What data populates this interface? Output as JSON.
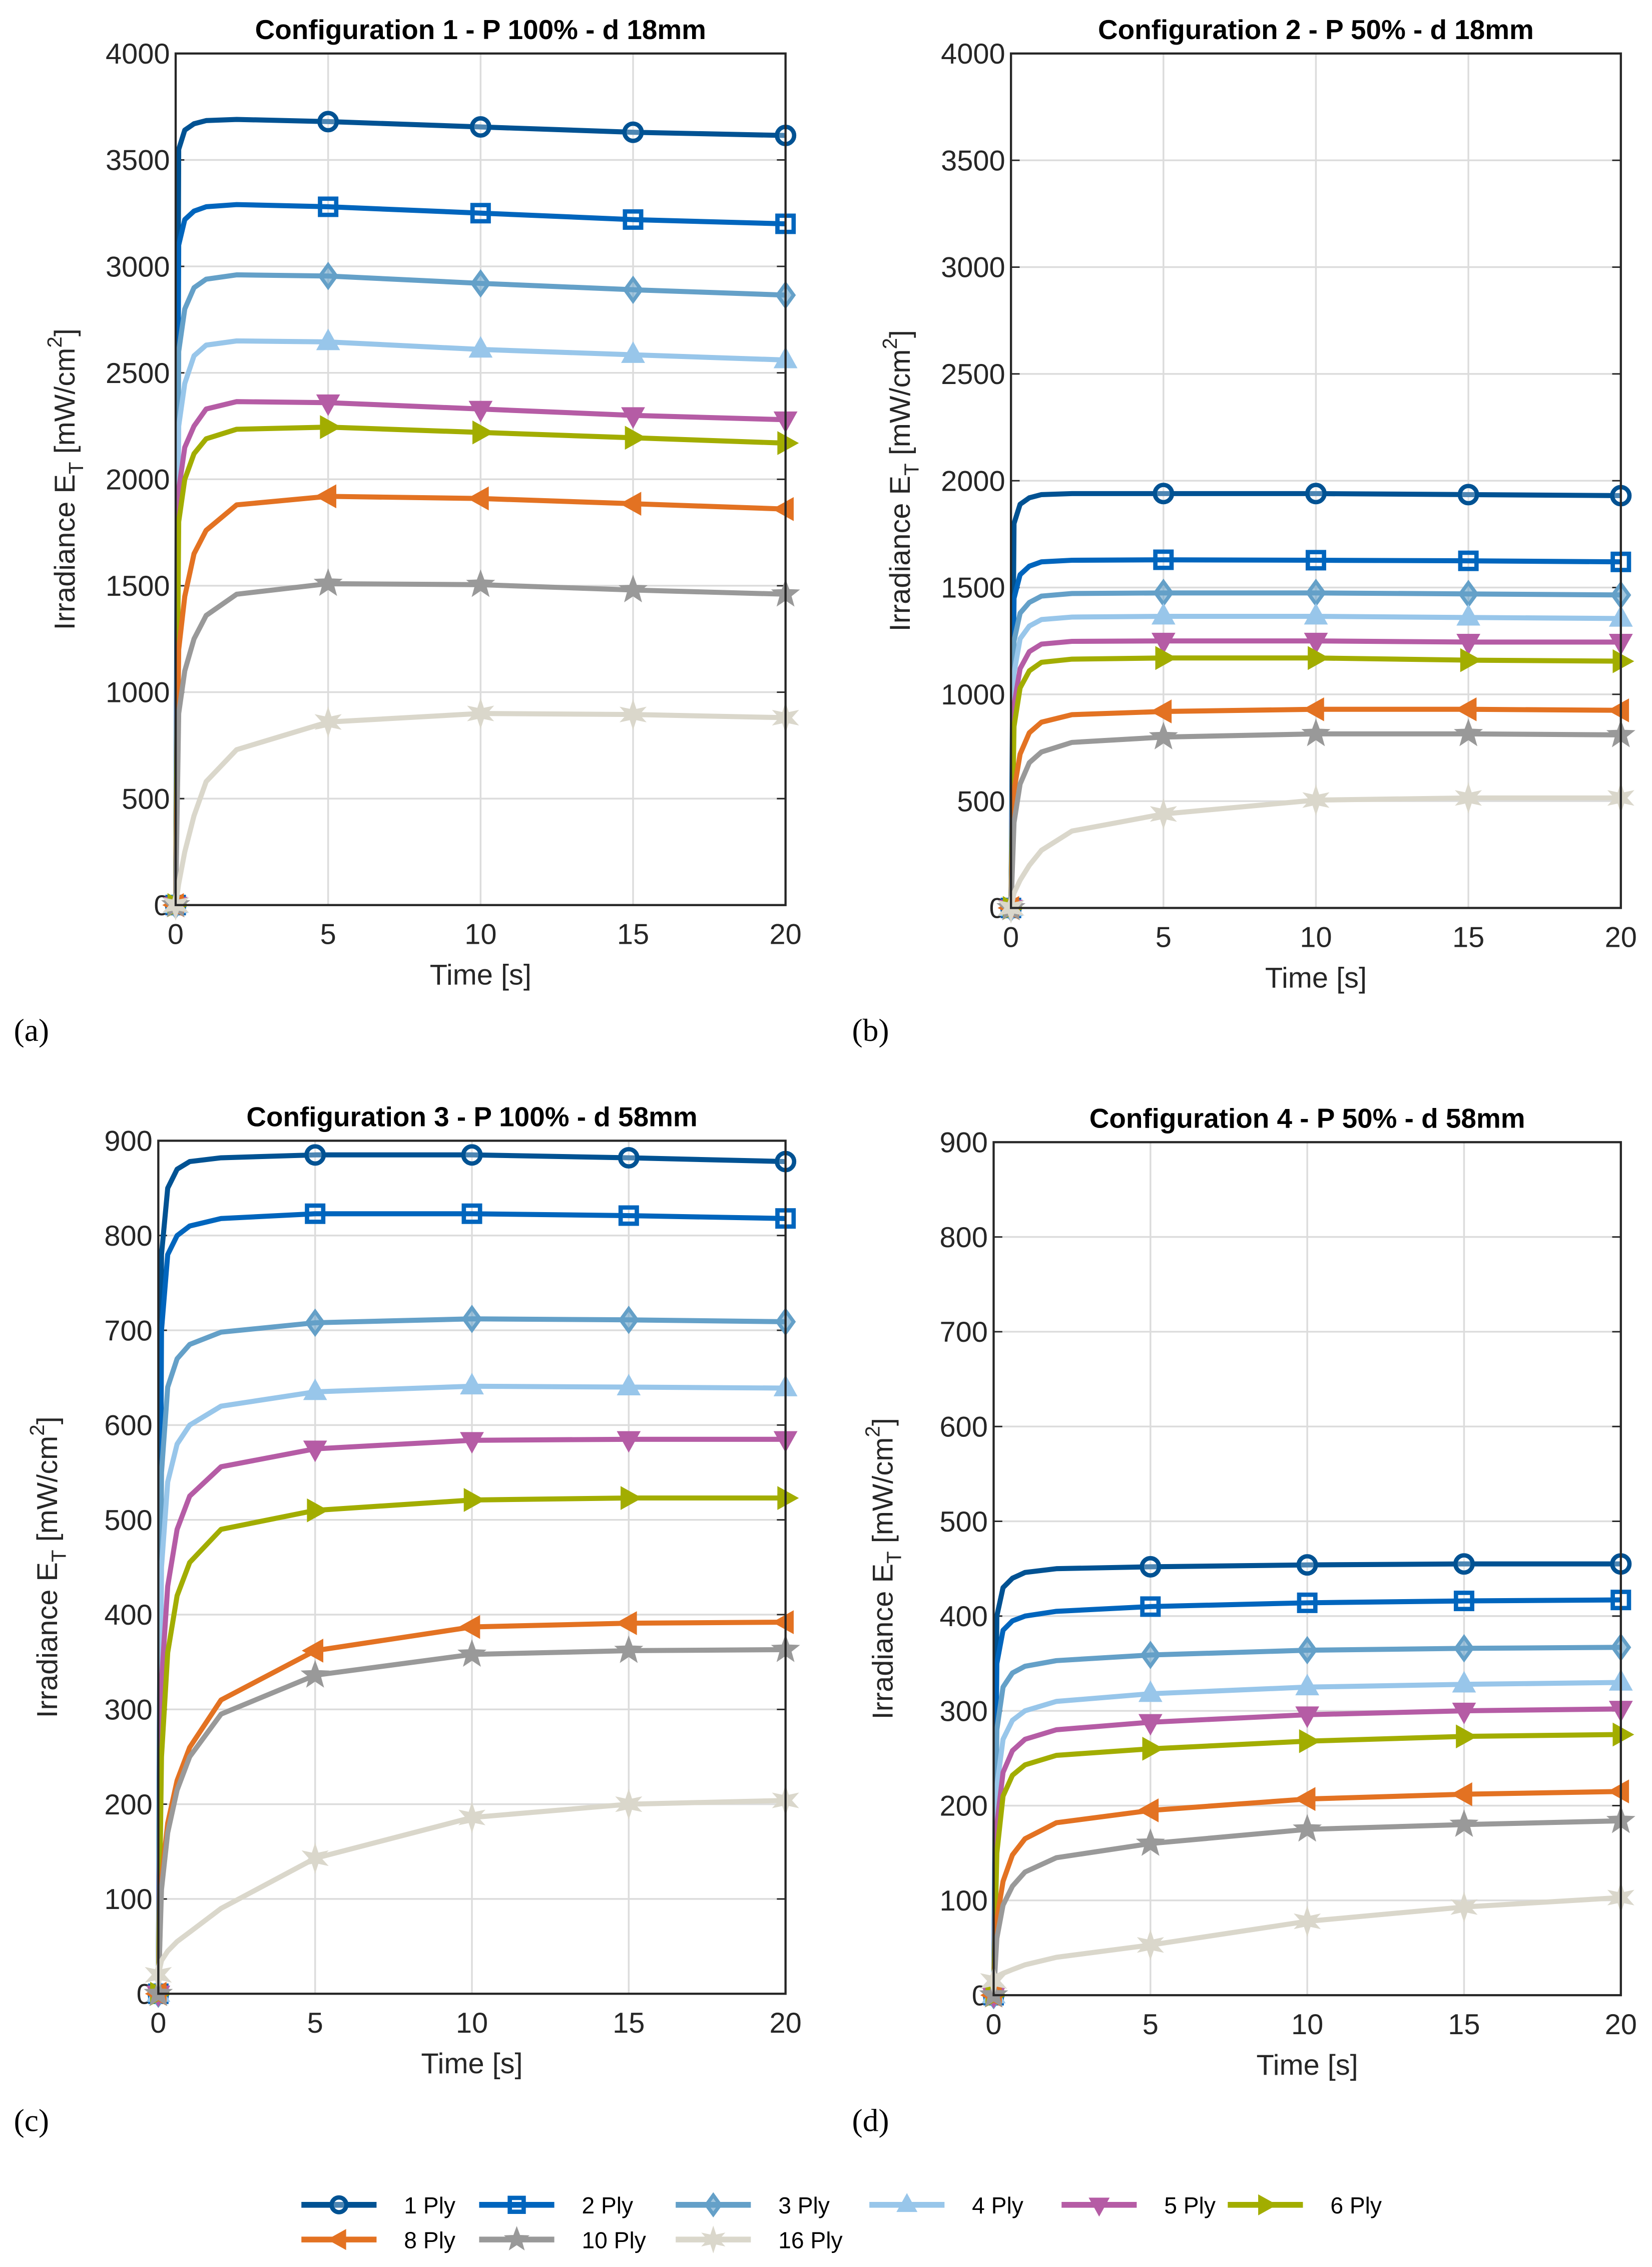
{
  "colors": {
    "1 Ply": "#005293",
    "2 Ply": "#0065bd",
    "3 Ply": "#64a0c8",
    "4 Ply": "#98c6ea",
    "5 Ply": "#b55ca5",
    "6 Ply": "#a2ad00",
    "8 Ply": "#e37222",
    "10 Ply": "#999999",
    "16 Ply": "#dad7cb"
  },
  "markers": {
    "1 Ply": "circle",
    "2 Ply": "square",
    "3 Ply": "diamond",
    "4 Ply": "triangle-up",
    "5 Ply": "triangle-down",
    "6 Ply": "triangle-right",
    "8 Ply": "triangle-left",
    "10 Ply": "pentagram",
    "16 Ply": "hexagram"
  },
  "legend": [
    "1 Ply",
    "2 Ply",
    "3 Ply",
    "4 Ply",
    "5 Ply",
    "6 Ply",
    "8 Ply",
    "10 Ply",
    "16 Ply"
  ],
  "chart_data": [
    {
      "type": "line",
      "panel": "(a)",
      "title": "Configuration 1 - P 100% - d 18mm",
      "xlabel": "Time [s]",
      "ylabel_parts": [
        "Irradiance E",
        "T",
        " [mW/cm",
        "2",
        "]"
      ],
      "xlim": [
        0,
        20
      ],
      "ylim": [
        0,
        4000
      ],
      "xticks": [
        0,
        5,
        10,
        15,
        20
      ],
      "yticks": [
        0,
        500,
        1000,
        1500,
        2000,
        2500,
        3000,
        3500,
        4000
      ],
      "grid": true,
      "x": [
        0,
        0.1,
        0.3,
        0.6,
        1,
        2,
        5,
        10,
        15,
        20
      ],
      "series": [
        {
          "name": "1 Ply",
          "values": [
            0,
            3550,
            3640,
            3670,
            3685,
            3690,
            3680,
            3655,
            3630,
            3615
          ]
        },
        {
          "name": "2 Ply",
          "values": [
            0,
            3100,
            3220,
            3260,
            3280,
            3290,
            3280,
            3250,
            3220,
            3200
          ]
        },
        {
          "name": "3 Ply",
          "values": [
            0,
            2600,
            2800,
            2900,
            2940,
            2960,
            2955,
            2920,
            2890,
            2865
          ]
        },
        {
          "name": "4 Ply",
          "values": [
            0,
            2250,
            2450,
            2580,
            2630,
            2650,
            2645,
            2610,
            2585,
            2560
          ]
        },
        {
          "name": "5 Ply",
          "values": [
            0,
            1950,
            2150,
            2250,
            2330,
            2365,
            2360,
            2330,
            2300,
            2280
          ]
        },
        {
          "name": "6 Ply",
          "values": [
            0,
            1800,
            2000,
            2120,
            2190,
            2235,
            2245,
            2220,
            2195,
            2170
          ]
        },
        {
          "name": "8 Ply",
          "values": [
            0,
            1200,
            1450,
            1650,
            1760,
            1880,
            1920,
            1910,
            1885,
            1860
          ]
        },
        {
          "name": "10 Ply",
          "values": [
            0,
            900,
            1100,
            1250,
            1360,
            1460,
            1510,
            1505,
            1480,
            1460
          ]
        },
        {
          "name": "16 Ply",
          "values": [
            0,
            100,
            250,
            420,
            580,
            730,
            860,
            900,
            895,
            880
          ]
        }
      ]
    },
    {
      "type": "line",
      "panel": "(b)",
      "title": "Configuration 2 - P 50% - d 18mm",
      "xlabel": "Time [s]",
      "ylabel_parts": [
        "Irradiance E",
        "T",
        " [mW/cm",
        "2",
        "]"
      ],
      "xlim": [
        0,
        20
      ],
      "ylim": [
        0,
        4000
      ],
      "xticks": [
        0,
        5,
        10,
        15,
        20
      ],
      "yticks": [
        0,
        500,
        1000,
        1500,
        2000,
        2500,
        3000,
        3500,
        4000
      ],
      "grid": true,
      "x": [
        0,
        0.1,
        0.3,
        0.6,
        1,
        2,
        5,
        10,
        15,
        20
      ],
      "series": [
        {
          "name": "1 Ply",
          "values": [
            0,
            1800,
            1890,
            1920,
            1935,
            1940,
            1940,
            1940,
            1935,
            1930
          ]
        },
        {
          "name": "2 Ply",
          "values": [
            0,
            1450,
            1560,
            1600,
            1620,
            1628,
            1630,
            1628,
            1625,
            1620
          ]
        },
        {
          "name": "3 Ply",
          "values": [
            0,
            1250,
            1380,
            1430,
            1460,
            1472,
            1475,
            1475,
            1470,
            1465
          ]
        },
        {
          "name": "4 Ply",
          "values": [
            0,
            1100,
            1260,
            1320,
            1350,
            1362,
            1365,
            1365,
            1360,
            1355
          ]
        },
        {
          "name": "5 Ply",
          "values": [
            0,
            950,
            1120,
            1200,
            1235,
            1248,
            1250,
            1250,
            1245,
            1245
          ]
        },
        {
          "name": "6 Ply",
          "values": [
            0,
            850,
            1030,
            1110,
            1150,
            1165,
            1170,
            1170,
            1160,
            1155
          ]
        },
        {
          "name": "8 Ply",
          "values": [
            0,
            550,
            720,
            820,
            870,
            905,
            920,
            930,
            930,
            925
          ]
        },
        {
          "name": "10 Ply",
          "values": [
            0,
            400,
            580,
            680,
            730,
            775,
            800,
            815,
            815,
            810
          ]
        },
        {
          "name": "16 Ply",
          "values": [
            0,
            70,
            130,
            200,
            270,
            360,
            440,
            505,
            515,
            515
          ]
        }
      ]
    },
    {
      "type": "line",
      "panel": "(c)",
      "title": "Configuration 3 - P 100% - d 58mm",
      "xlabel": "Time [s]",
      "ylabel_parts": [
        "Irradiance E",
        "T",
        " [mW/cm",
        "2",
        "]"
      ],
      "xlim": [
        0,
        20
      ],
      "ylim": [
        0,
        900
      ],
      "xticks": [
        0,
        5,
        10,
        15,
        20
      ],
      "yticks": [
        0,
        100,
        200,
        300,
        400,
        500,
        600,
        700,
        800,
        900
      ],
      "grid": true,
      "x": [
        0,
        0.1,
        0.3,
        0.6,
        1,
        2,
        5,
        10,
        15,
        20
      ],
      "series": [
        {
          "name": "1 Ply",
          "values": [
            0,
            780,
            850,
            870,
            878,
            882,
            885,
            885,
            882,
            878
          ]
        },
        {
          "name": "2 Ply",
          "values": [
            0,
            700,
            780,
            800,
            810,
            818,
            823,
            823,
            821,
            818
          ]
        },
        {
          "name": "3 Ply",
          "values": [
            0,
            550,
            640,
            670,
            685,
            698,
            708,
            712,
            711,
            709
          ]
        },
        {
          "name": "4 Ply",
          "values": [
            0,
            450,
            540,
            580,
            600,
            620,
            635,
            641,
            640,
            639
          ]
        },
        {
          "name": "5 Ply",
          "values": [
            0,
            330,
            430,
            490,
            525,
            556,
            575,
            584,
            585,
            585
          ]
        },
        {
          "name": "6 Ply",
          "values": [
            0,
            250,
            360,
            420,
            455,
            490,
            510,
            521,
            523,
            523
          ]
        },
        {
          "name": "8 Ply",
          "values": [
            0,
            120,
            180,
            225,
            260,
            310,
            362,
            387,
            391,
            392
          ]
        },
        {
          "name": "10 Ply",
          "values": [
            0,
            110,
            170,
            215,
            250,
            295,
            336,
            358,
            362,
            363
          ]
        },
        {
          "name": "16 Ply",
          "values": [
            20,
            35,
            45,
            55,
            65,
            90,
            143,
            186,
            200,
            204
          ]
        }
      ]
    },
    {
      "type": "line",
      "panel": "(d)",
      "title": "Configuration 4 - P 50% - d 58mm",
      "xlabel": "Time [s]",
      "ylabel_parts": [
        "Irradiance E",
        "T",
        " [mW/cm",
        "2",
        "]"
      ],
      "xlim": [
        0,
        20
      ],
      "ylim": [
        0,
        900
      ],
      "xticks": [
        0,
        5,
        10,
        15,
        20
      ],
      "yticks": [
        0,
        100,
        200,
        300,
        400,
        500,
        600,
        700,
        800,
        900
      ],
      "grid": true,
      "x": [
        0,
        0.1,
        0.3,
        0.6,
        1,
        2,
        5,
        10,
        15,
        20
      ],
      "series": [
        {
          "name": "1 Ply",
          "values": [
            0,
            400,
            430,
            440,
            446,
            450,
            452,
            454,
            455,
            455
          ]
        },
        {
          "name": "2 Ply",
          "values": [
            0,
            350,
            385,
            395,
            400,
            405,
            410,
            414,
            416,
            417
          ]
        },
        {
          "name": "3 Ply",
          "values": [
            0,
            280,
            325,
            340,
            347,
            353,
            359,
            364,
            366,
            367
          ]
        },
        {
          "name": "4 Ply",
          "values": [
            0,
            220,
            270,
            290,
            300,
            310,
            318,
            325,
            328,
            330
          ]
        },
        {
          "name": "5 Ply",
          "values": [
            0,
            180,
            235,
            258,
            270,
            280,
            288,
            296,
            300,
            302
          ]
        },
        {
          "name": "6 Ply",
          "values": [
            0,
            150,
            210,
            232,
            243,
            253,
            260,
            268,
            273,
            275
          ]
        },
        {
          "name": "8 Ply",
          "values": [
            0,
            80,
            120,
            148,
            165,
            182,
            195,
            207,
            212,
            215
          ]
        },
        {
          "name": "10 Ply",
          "values": [
            0,
            60,
            95,
            115,
            130,
            145,
            160,
            175,
            180,
            184
          ]
        },
        {
          "name": "16 Ply",
          "values": [
            15,
            20,
            23,
            27,
            32,
            40,
            53,
            78,
            93,
            103
          ]
        }
      ]
    }
  ]
}
